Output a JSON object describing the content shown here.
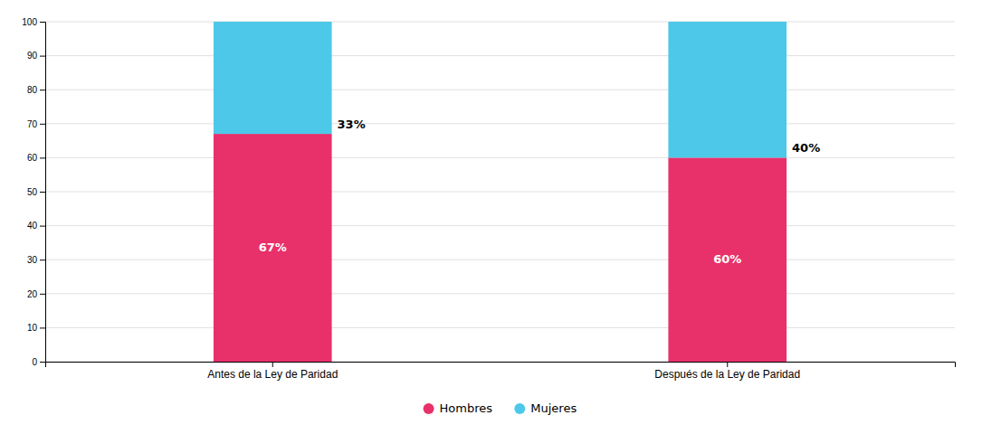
{
  "chart_data": {
    "type": "bar",
    "stacked": true,
    "categories": [
      "Antes de la Ley de Paridad",
      "Después de la Ley de Paridad"
    ],
    "series": [
      {
        "name": "Hombres",
        "color": "#E8306A",
        "values": [
          67,
          60
        ],
        "value_labels": [
          "67%",
          "60%"
        ]
      },
      {
        "name": "Mujeres",
        "color": "#4DC8E8",
        "values": [
          33,
          40
        ],
        "value_labels": [
          "33%",
          "40%"
        ]
      }
    ],
    "ylim": [
      0,
      100
    ],
    "yticks": [
      0,
      10,
      20,
      30,
      40,
      50,
      60,
      70,
      80,
      90,
      100
    ],
    "grid": true,
    "legend": "bottom",
    "data_labels": true
  }
}
